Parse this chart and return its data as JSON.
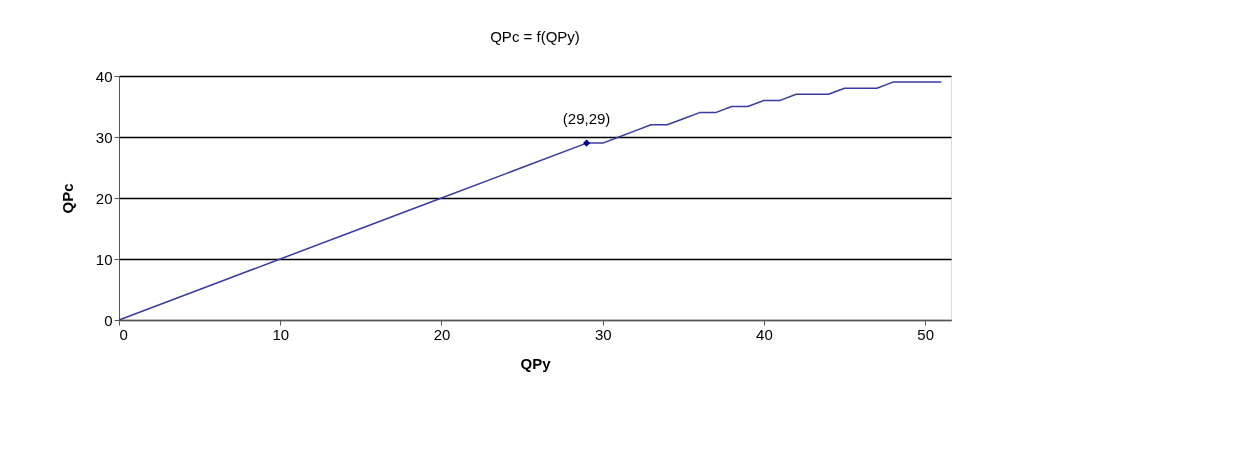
{
  "chart_data": {
    "type": "line",
    "title": "QPc = f(QPy)",
    "xlabel": "QPy",
    "ylabel": "QPc",
    "series": [
      {
        "color": "#3a3aa0",
        "x": [
          0,
          5,
          10,
          15,
          20,
          24,
          25,
          29,
          30,
          31,
          32,
          33,
          34,
          35,
          36,
          37,
          38,
          39,
          40,
          41,
          42,
          43,
          44,
          45,
          46,
          47,
          48,
          49,
          50,
          51
        ],
        "values": [
          0,
          5,
          10,
          15,
          20,
          24,
          25,
          29,
          29,
          30,
          31,
          32,
          32,
          33,
          34,
          34,
          35,
          35,
          36,
          36,
          37,
          37,
          37,
          38,
          38,
          38,
          39,
          39,
          39,
          39
        ]
      },
      {
        "type": "scatter",
        "marker": "diamond",
        "color": "#00008b",
        "x": [
          29
        ],
        "values": [
          29
        ]
      }
    ],
    "annotations": [
      {
        "text": "(29,29)",
        "x": 29,
        "y": 29
      }
    ],
    "xlim": [
      0,
      51.6
    ],
    "ylim": [
      0,
      40
    ],
    "xticks": [
      0,
      10,
      20,
      30,
      40,
      50
    ],
    "yticks": [
      0,
      10,
      20,
      30,
      40
    ],
    "grid": "y",
    "marker": "none",
    "line_style": "solid"
  }
}
